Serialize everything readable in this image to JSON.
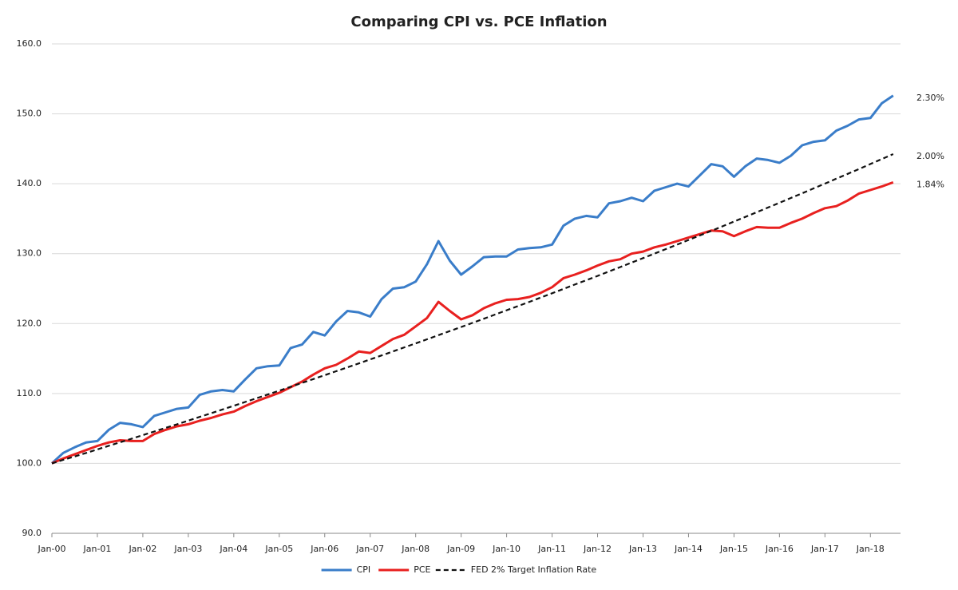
{
  "chart_data": {
    "type": "line",
    "title": "Comparing CPI vs. PCE Inflation",
    "categories": [
      "Jan-00",
      null,
      null,
      null,
      "Jan-01",
      null,
      null,
      null,
      "Jan-02",
      null,
      null,
      null,
      "Jan-03",
      null,
      null,
      null,
      "Jan-04",
      null,
      null,
      null,
      "Jan-05",
      null,
      null,
      null,
      "Jan-06",
      null,
      null,
      null,
      "Jan-07",
      null,
      null,
      null,
      "Jan-08",
      null,
      null,
      null,
      "Jan-09",
      null,
      null,
      null,
      "Jan-10",
      null,
      null,
      null,
      "Jan-11",
      null,
      null,
      null,
      "Jan-12",
      null,
      null,
      null,
      "Jan-13",
      null,
      null,
      null,
      "Jan-14",
      null,
      null,
      null,
      "Jan-15",
      null,
      null,
      null,
      "Jan-16",
      null,
      null,
      null,
      "Jan-17",
      null,
      null,
      null,
      "Jan-18",
      null,
      null
    ],
    "series": [
      {
        "name": "CPI",
        "color": "#3a7dc9",
        "dashed": false,
        "end_label": "2.30%",
        "values": [
          100.0,
          101.5,
          102.3,
          103.0,
          103.2,
          104.8,
          105.8,
          105.6,
          105.2,
          106.8,
          107.3,
          107.8,
          108.0,
          109.8,
          110.3,
          110.5,
          110.3,
          112.0,
          113.6,
          113.9,
          114.0,
          116.5,
          117.0,
          118.8,
          118.3,
          120.3,
          121.8,
          121.6,
          121.0,
          123.5,
          125.0,
          125.2,
          126.0,
          128.5,
          131.8,
          129.0,
          127.0,
          128.2,
          129.5,
          129.6,
          129.6,
          130.6,
          130.8,
          130.9,
          131.3,
          134.0,
          135.0,
          135.4,
          135.2,
          137.2,
          137.5,
          138.0,
          137.5,
          139.0,
          139.5,
          140.0,
          139.6,
          141.2,
          142.8,
          142.5,
          141.0,
          142.5,
          143.6,
          143.4,
          143.0,
          144.0,
          145.5,
          146.0,
          146.2,
          147.6,
          148.3,
          149.2,
          149.4,
          151.5,
          152.6
        ]
      },
      {
        "name": "PCE",
        "color": "#e8201f",
        "dashed": false,
        "end_label": "1.84%",
        "values": [
          100.0,
          100.7,
          101.3,
          101.9,
          102.5,
          103.0,
          103.3,
          103.2,
          103.2,
          104.2,
          104.8,
          105.3,
          105.6,
          106.1,
          106.5,
          107.0,
          107.4,
          108.2,
          108.9,
          109.5,
          110.1,
          110.9,
          111.7,
          112.7,
          113.6,
          114.1,
          115.0,
          116.0,
          115.8,
          116.8,
          117.8,
          118.4,
          119.6,
          120.8,
          123.1,
          121.8,
          120.6,
          121.2,
          122.2,
          122.9,
          123.4,
          123.5,
          123.8,
          124.4,
          125.2,
          126.5,
          127.0,
          127.6,
          128.3,
          128.9,
          129.2,
          130.0,
          130.3,
          130.9,
          131.3,
          131.8,
          132.3,
          132.8,
          133.3,
          133.2,
          132.5,
          133.2,
          133.8,
          133.7,
          133.7,
          134.4,
          135.0,
          135.8,
          136.5,
          136.8,
          137.6,
          138.6,
          139.1,
          139.6,
          140.2
        ]
      },
      {
        "name": "FED 2% Target Inflation Rate",
        "color": "#111111",
        "dashed": true,
        "end_label": "2.00%",
        "values": [
          100.0,
          100.5,
          101.0,
          101.49,
          102.0,
          102.51,
          103.02,
          103.52,
          104.04,
          104.56,
          105.08,
          105.59,
          106.12,
          106.65,
          107.18,
          107.71,
          108.24,
          108.78,
          109.32,
          109.86,
          110.41,
          110.96,
          111.51,
          112.06,
          112.62,
          113.18,
          113.74,
          114.3,
          114.87,
          115.44,
          116.01,
          116.59,
          117.17,
          117.75,
          118.34,
          118.92,
          119.51,
          120.1,
          120.7,
          121.3,
          121.9,
          122.5,
          123.11,
          123.72,
          124.34,
          124.96,
          125.58,
          126.2,
          126.82,
          127.45,
          128.08,
          128.72,
          129.36,
          130.0,
          130.65,
          131.29,
          131.95,
          132.6,
          133.26,
          133.92,
          134.59,
          135.26,
          135.93,
          136.6,
          137.28,
          137.96,
          138.64,
          139.33,
          140.02,
          140.72,
          141.41,
          142.11,
          142.82,
          143.53,
          144.24
        ]
      }
    ],
    "ylim": [
      90,
      160
    ],
    "yticks": [
      {
        "value": 90,
        "label": "90.0"
      },
      {
        "value": 100,
        "label": "100.0"
      },
      {
        "value": 110,
        "label": "110.0"
      },
      {
        "value": 120,
        "label": "120.0"
      },
      {
        "value": 130,
        "label": "130.0"
      },
      {
        "value": 140,
        "label": "140.0"
      },
      {
        "value": 150,
        "label": "150.0"
      },
      {
        "value": 160,
        "label": "160.0"
      }
    ],
    "grid": true,
    "legend": "bottom"
  }
}
